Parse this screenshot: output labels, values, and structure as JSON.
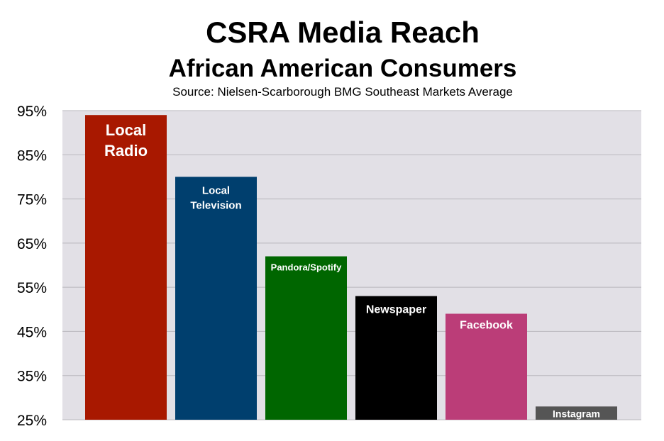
{
  "chart_data": {
    "type": "bar",
    "title": "CSRA Media Reach",
    "subtitle": "African American Consumers",
    "source": "Source: Nielsen-Scarborough BMG Southeast Markets Average",
    "xlabel": "",
    "ylabel": "",
    "ylim": [
      25,
      95
    ],
    "y_ticks": [
      "95%",
      "85%",
      "75%",
      "65%",
      "55%",
      "45%",
      "35%",
      "25%"
    ],
    "grid": true,
    "plot_background": "#e2e0e6",
    "categories": [
      [
        "Local",
        "Radio"
      ],
      [
        "Local",
        "Television"
      ],
      [
        "Pandora/Spotify"
      ],
      [
        "Newspaper"
      ],
      [
        "Facebook"
      ],
      [
        "Instagram"
      ]
    ],
    "values": [
      94,
      80,
      62,
      53,
      49,
      28
    ],
    "colors": [
      "#a81800",
      "#003f6e",
      "#006600",
      "#000000",
      "#bb3d78",
      "#555555"
    ]
  }
}
